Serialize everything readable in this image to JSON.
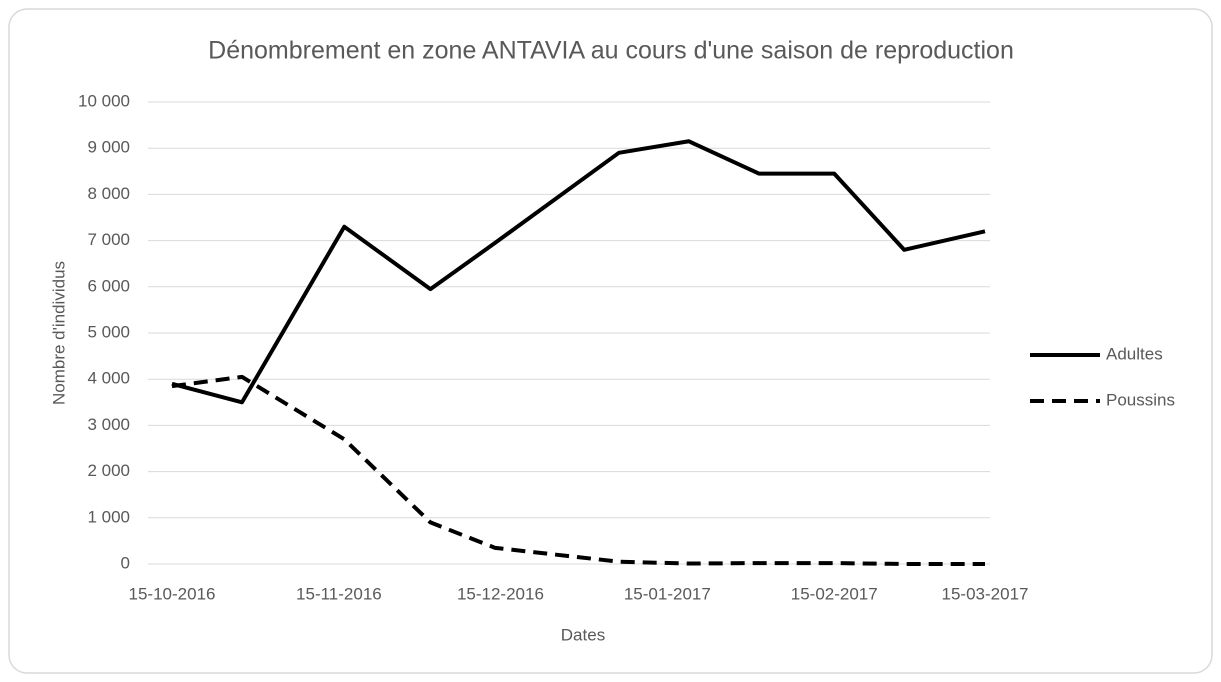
{
  "chart_data": {
    "type": "line",
    "title": "Dénombrement en zone ANTAVIA au cours d'une saison de reproduction",
    "xlabel": "Dates",
    "ylabel": "Nombre d'individus",
    "x": [
      "15-10-2016",
      "28-10-2016",
      "16-11-2016",
      "02-12-2016",
      "14-12-2016",
      "06-01-2017",
      "19-01-2017",
      "01-02-2017",
      "15-02-2017",
      "28-02-2017",
      "15-03-2017"
    ],
    "xlim": [
      "15-10-2016",
      "15-03-2017"
    ],
    "xticks": [
      "15-10-2016",
      "15-11-2016",
      "15-12-2016",
      "15-01-2017",
      "15-02-2017",
      "15-03-2017"
    ],
    "ylim": [
      0,
      10000
    ],
    "yticks": [
      0,
      {
        "value": 1000,
        "label": "1 000"
      },
      {
        "value": 2000,
        "label": "2 000"
      },
      {
        "value": 3000,
        "label": "3 000"
      },
      {
        "value": 4000,
        "label": "4 000"
      },
      {
        "value": 5000,
        "label": "5 000"
      },
      {
        "value": 6000,
        "label": "6 000"
      },
      {
        "value": 7000,
        "label": "7 000"
      },
      {
        "value": 8000,
        "label": "8 000"
      },
      {
        "value": 9000,
        "label": "9 000"
      },
      {
        "value": 10000,
        "label": "10 000"
      }
    ],
    "grid": true,
    "legend": "right",
    "series": [
      {
        "name": "Adultes",
        "color": "#000000",
        "dash": "solid",
        "values": [
          3900,
          3500,
          7300,
          5950,
          6950,
          8900,
          9150,
          8450,
          8450,
          6800,
          7200
        ]
      },
      {
        "name": "Poussins",
        "color": "#000000",
        "dash": "dashed",
        "values": [
          3850,
          4050,
          2700,
          900,
          350,
          50,
          10,
          20,
          20,
          0,
          0
        ]
      }
    ]
  }
}
